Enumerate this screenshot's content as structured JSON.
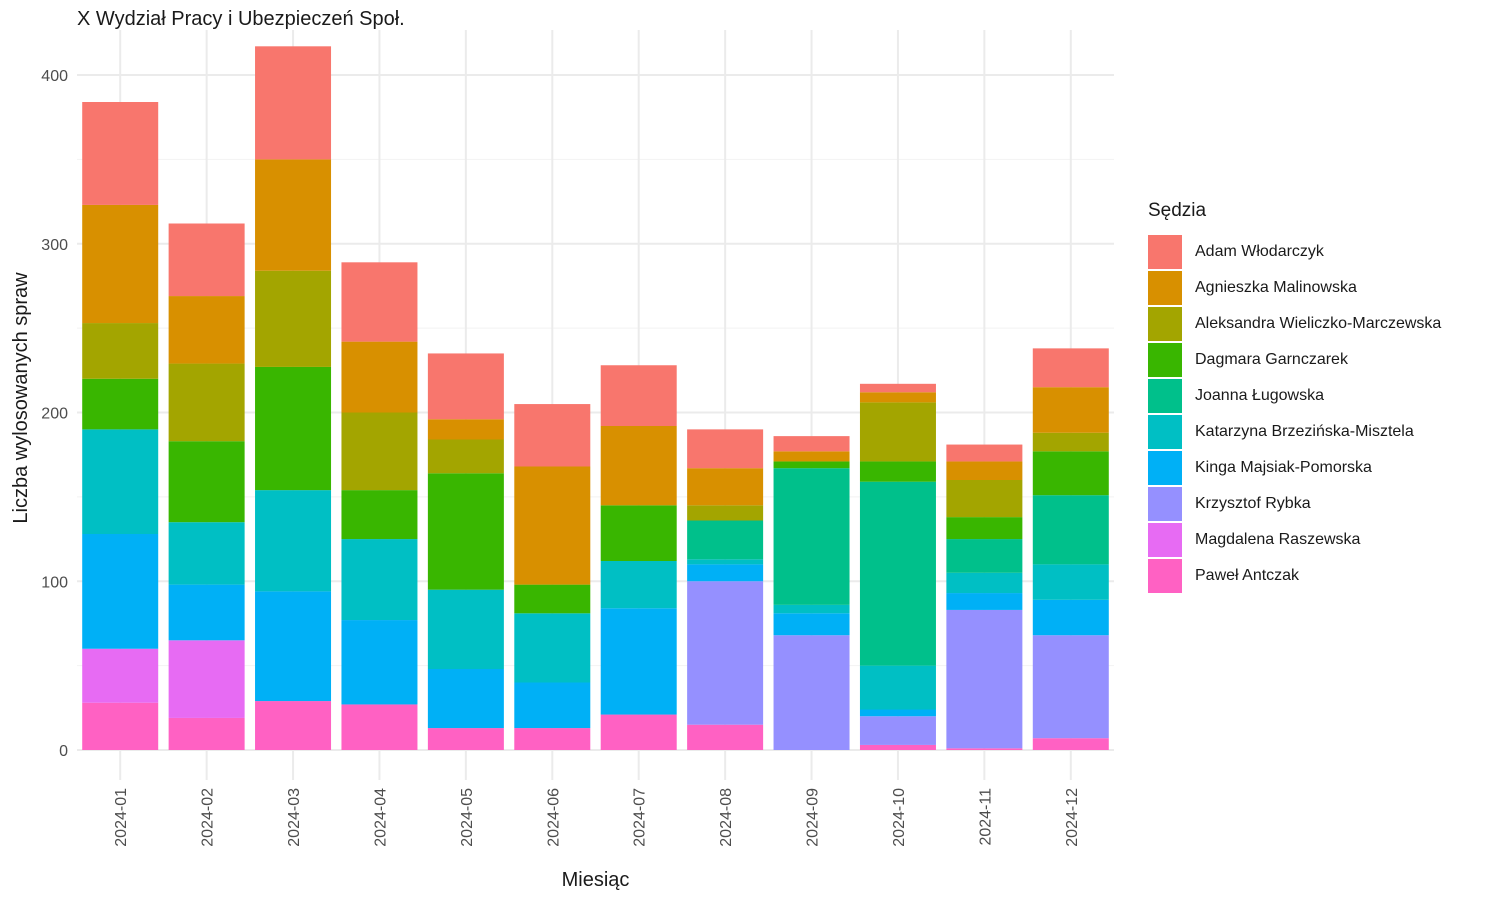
{
  "chart_data": {
    "type": "bar",
    "stacked": true,
    "title": "X Wydział Pracy i Ubezpieczeń Społ.",
    "xlabel": "Miesiąc",
    "ylabel": "Liczba wylosowanych spraw",
    "ylim": [
      0,
      420
    ],
    "yticks": [
      0,
      100,
      200,
      300,
      400
    ],
    "grid": true,
    "legend_title": "Sędzia",
    "legend_position": "right",
    "categories": [
      "2024-01",
      "2024-02",
      "2024-03",
      "2024-04",
      "2024-05",
      "2024-06",
      "2024-07",
      "2024-08",
      "2024-09",
      "2024-10",
      "2024-11",
      "2024-12"
    ],
    "series": [
      {
        "name": "Paweł Antczak",
        "color": "#FF61C3",
        "values": [
          28,
          19,
          29,
          27,
          13,
          13,
          21,
          15,
          0,
          3,
          1,
          7
        ]
      },
      {
        "name": "Magdalena Raszewska",
        "color": "#E76BF3",
        "values": [
          32,
          46,
          0,
          0,
          0,
          0,
          0,
          0,
          0,
          0,
          0,
          0
        ]
      },
      {
        "name": "Krzysztof Rybka",
        "color": "#9590FF",
        "values": [
          0,
          0,
          0,
          0,
          0,
          0,
          0,
          85,
          68,
          17,
          82,
          61
        ]
      },
      {
        "name": "Kinga Majsiak-Pomorska",
        "color": "#00B0F6",
        "values": [
          68,
          33,
          65,
          50,
          35,
          27,
          63,
          10,
          13,
          4,
          10,
          21
        ]
      },
      {
        "name": "Katarzyna Brzezińska-Misztela",
        "color": "#00BFC4",
        "values": [
          62,
          37,
          60,
          48,
          47,
          41,
          28,
          3,
          5,
          26,
          12,
          21
        ]
      },
      {
        "name": "Joanna Ługowska",
        "color": "#00C08B",
        "values": [
          0,
          0,
          0,
          0,
          0,
          0,
          0,
          23,
          81,
          109,
          20,
          41
        ]
      },
      {
        "name": "Dagmara Garnczarek",
        "color": "#39B600",
        "values": [
          30,
          48,
          73,
          29,
          69,
          17,
          33,
          0,
          4,
          12,
          13,
          26
        ]
      },
      {
        "name": "Aleksandra Wieliczko-Marczewska",
        "color": "#A3A500",
        "values": [
          33,
          46,
          57,
          46,
          20,
          0,
          0,
          9,
          0,
          35,
          22,
          11
        ]
      },
      {
        "name": "Agnieszka Malinowska",
        "color": "#D89000",
        "values": [
          70,
          40,
          66,
          42,
          12,
          70,
          47,
          22,
          6,
          6,
          11,
          27
        ]
      },
      {
        "name": "Adam Włodarczyk",
        "color": "#F8766D",
        "values": [
          61,
          43,
          67,
          47,
          39,
          37,
          36,
          23,
          9,
          5,
          10,
          23
        ]
      }
    ]
  }
}
